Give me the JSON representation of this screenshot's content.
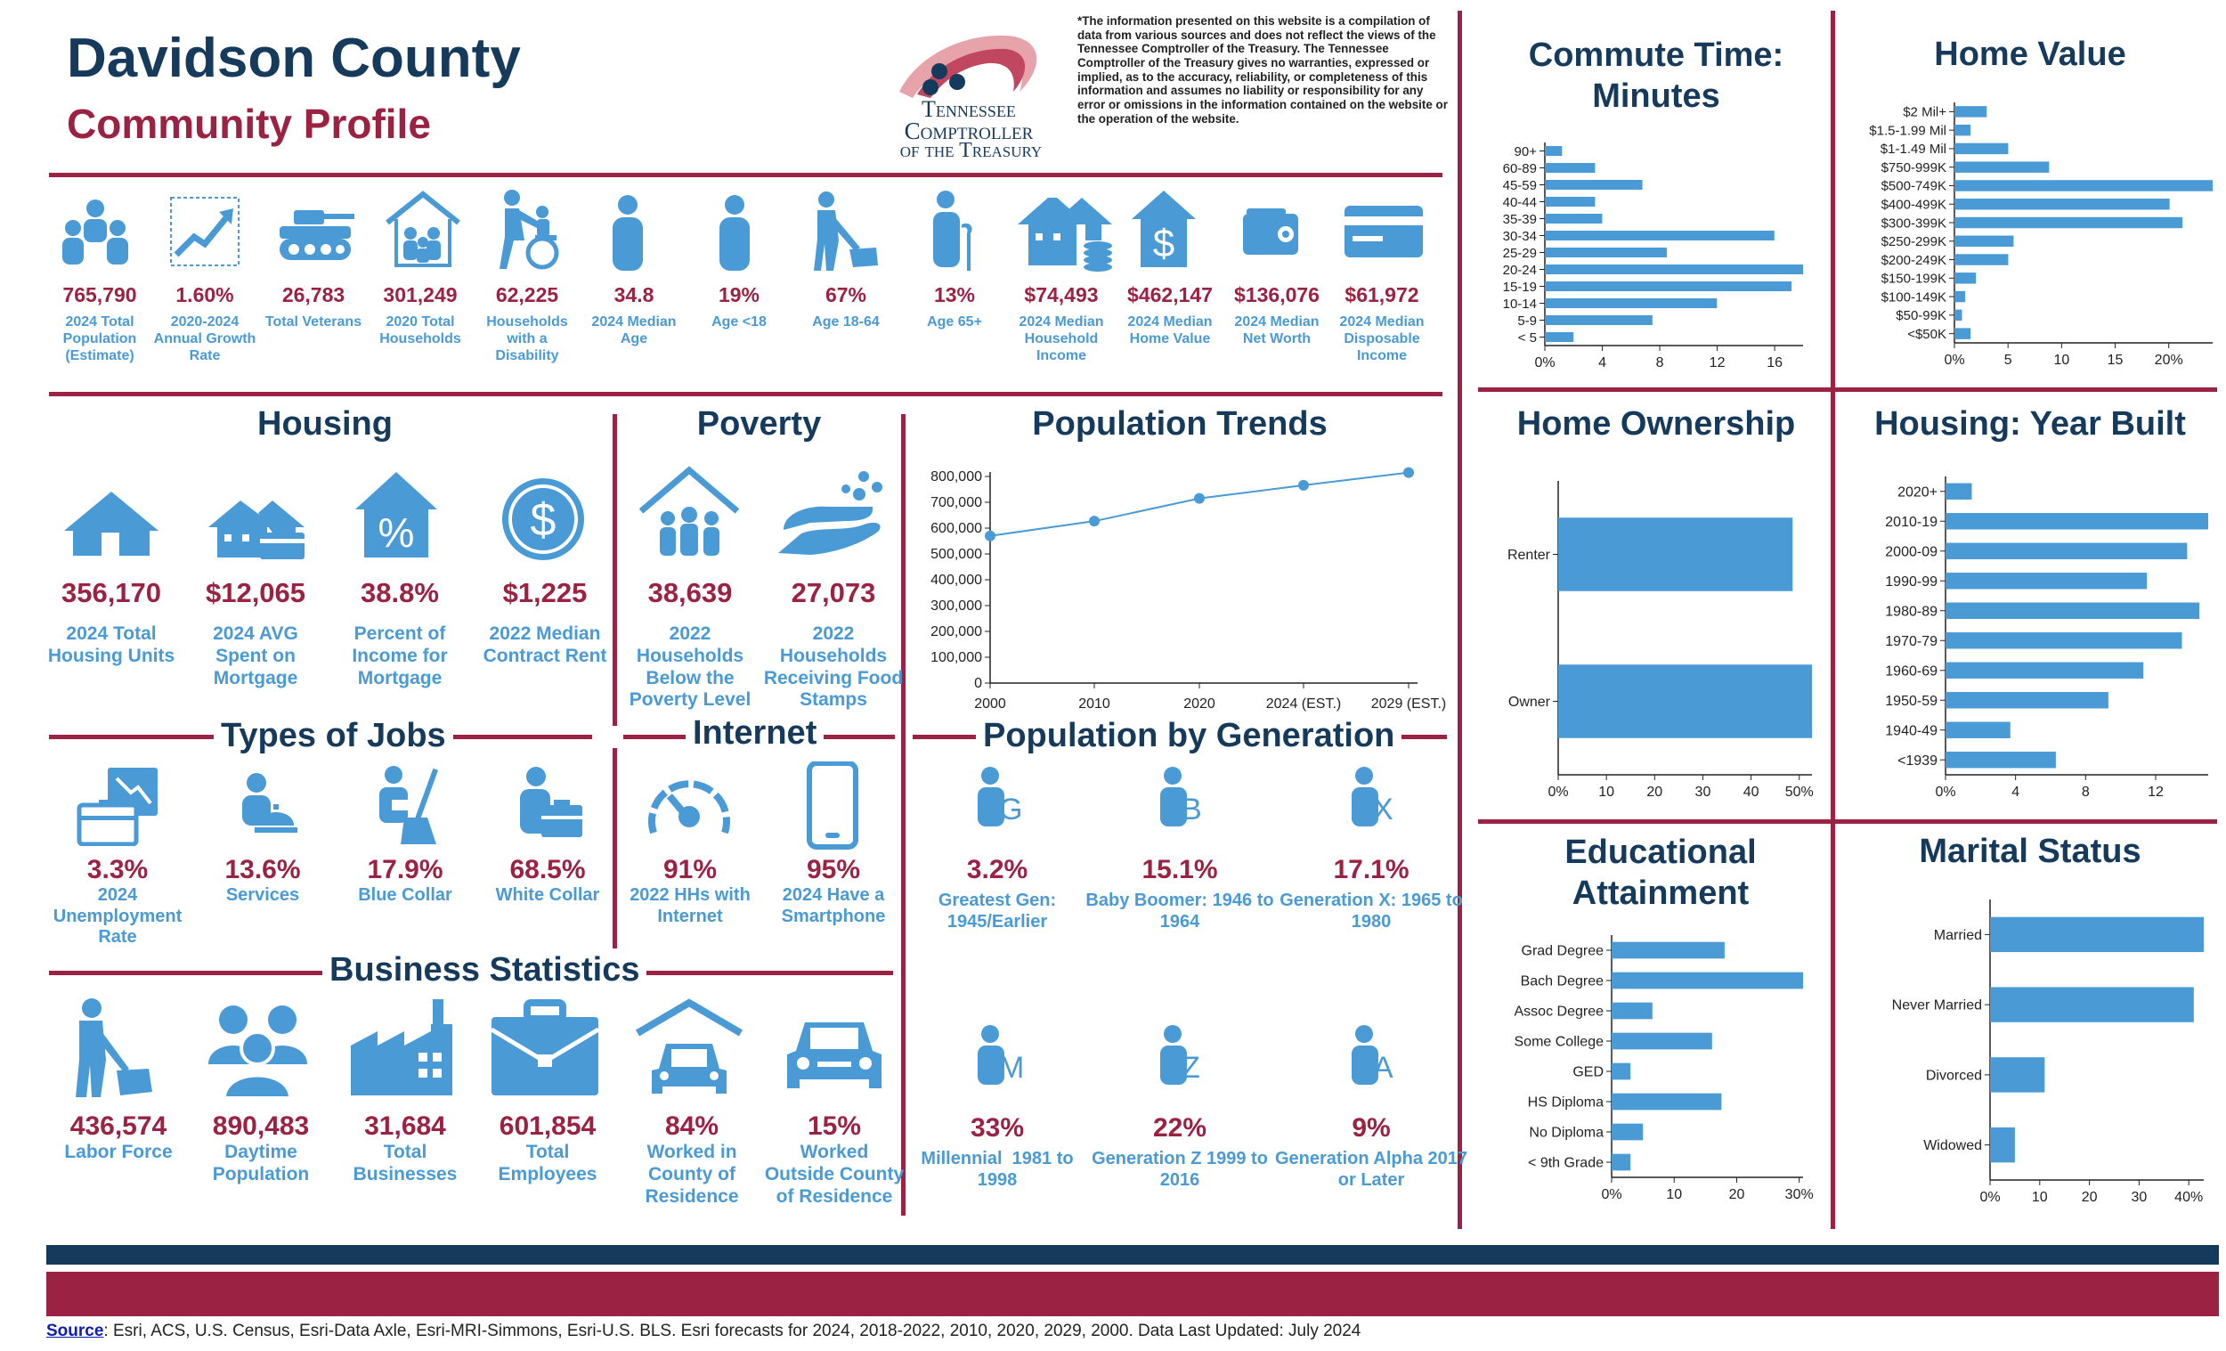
{
  "header": {
    "title": "Davidson County",
    "subtitle": "Community Profile",
    "logo_text": [
      "Tennessee",
      "Comptroller",
      "of the Treasury"
    ],
    "disclaimer": "*The information presented on this website is a compilation of data from various sources and does not reflect the views of the Tennessee Comptroller of the Treasury. The Tennessee Comptroller of the Treasury gives no warranties, expressed or implied, as to the accuracy, reliability, or completeness of this information and assumes no liability or responsibility for any error or omissions in the information contained on the website or the operation of the website."
  },
  "top_stats": [
    {
      "value": "765,790",
      "label": "2024 Total Population (Estimate)",
      "icon": "people-group-icon"
    },
    {
      "value": "1.60%",
      "label": "2020-2024 Annual Growth Rate",
      "icon": "growth-chart-icon"
    },
    {
      "value": "26,783",
      "label": "Total Veterans",
      "icon": "tank-icon"
    },
    {
      "value": "301,249",
      "label": "2020 Total Households",
      "icon": "household-icon"
    },
    {
      "value": "62,225",
      "label": "Households with a Disability",
      "icon": "wheelchair-icon"
    },
    {
      "value": "34.8",
      "label": "2024 Median Age",
      "icon": "person-icon"
    },
    {
      "value": "19%",
      "label": "Age <18",
      "icon": "child-icon"
    },
    {
      "value": "67%",
      "label": "Age 18-64",
      "icon": "worker-icon"
    },
    {
      "value": "13%",
      "label": "Age 65+",
      "icon": "elder-icon"
    },
    {
      "value": "$74,493",
      "label": "2024 Median Household Income",
      "icon": "house-coins-icon"
    },
    {
      "value": "$462,147",
      "label": "2024 Median Home Value",
      "icon": "house-dollar-icon"
    },
    {
      "value": "$136,076",
      "label": "2024 Median Net Worth",
      "icon": "wallet-icon"
    },
    {
      "value": "$61,972",
      "label": "2024 Median Disposable Income",
      "icon": "credit-card-icon"
    }
  ],
  "housing": {
    "title": "Housing",
    "stats": [
      {
        "value": "356,170",
        "label": "2024 Total Housing Units",
        "icon": "house-icon"
      },
      {
        "value": "$12,065",
        "label": "2024 AVG Spent on Mortgage",
        "icon": "house-card-icon"
      },
      {
        "value": "38.8%",
        "label": "Percent of Income for Mortgage",
        "icon": "house-percent-icon"
      },
      {
        "value": "$1,225",
        "label": "2022 Median Contract Rent",
        "icon": "dollar-circle-icon"
      }
    ]
  },
  "poverty": {
    "title": "Poverty",
    "stats": [
      {
        "value": "38,639",
        "label": "2022 Households Below the Poverty Level",
        "icon": "family-house-icon"
      },
      {
        "value": "27,073",
        "label": "2022 Households Receiving Food Stamps",
        "icon": "hand-food-icon"
      }
    ]
  },
  "jobs": {
    "title": "Types of Jobs",
    "stats": [
      {
        "value": "3.3%",
        "label": "2024 Unemployment Rate",
        "icon": "briefcase-down-icon"
      },
      {
        "value": "13.6%",
        "label": "Services",
        "icon": "service-bell-icon"
      },
      {
        "value": "17.9%",
        "label": "Blue Collar",
        "icon": "broom-worker-icon"
      },
      {
        "value": "68.5%",
        "label": "White Collar",
        "icon": "office-worker-icon"
      }
    ]
  },
  "internet": {
    "title": "Internet",
    "stats": [
      {
        "value": "91%",
        "label": "2022 HHs with Internet",
        "icon": "speedometer-icon"
      },
      {
        "value": "95%",
        "label": "2024 Have a Smartphone",
        "icon": "smartphone-icon"
      }
    ]
  },
  "business": {
    "title": "Business Statistics",
    "stats": [
      {
        "value": "436,574",
        "label": "Labor Force",
        "icon": "laborer-icon"
      },
      {
        "value": "890,483",
        "label": "Daytime Population",
        "icon": "crowd-icon"
      },
      {
        "value": "31,684",
        "label": "Total Businesses",
        "icon": "factory-icon"
      },
      {
        "value": "601,854",
        "label": "Total Employees",
        "icon": "big-briefcase-icon"
      },
      {
        "value": "84%",
        "label": "Worked in County of Residence",
        "icon": "car-garage-icon"
      },
      {
        "value": "15%",
        "label": "Worked Outside County of Residence",
        "icon": "car-icon"
      }
    ]
  },
  "generation": {
    "title": "Population by Generation",
    "stats": [
      {
        "value": "3.2%",
        "label": "Greatest Gen: 1945/Earlier",
        "letter": "G"
      },
      {
        "value": "15.1%",
        "label": "Baby Boomer: 1946 to 1964",
        "letter": "B"
      },
      {
        "value": "17.1%",
        "label": "Generation X: 1965 to 1980",
        "letter": "X"
      },
      {
        "value": "33%",
        "label": "Millennial  1981 to 1998",
        "letter": "M"
      },
      {
        "value": "22%",
        "label": "Generation Z 1999 to 2016",
        "letter": "Z"
      },
      {
        "value": "9%",
        "label": "Generation Alpha 2017 or Later",
        "letter": "A"
      }
    ]
  },
  "source": {
    "label": "Source",
    "text": ": Esri, ACS, U.S. Census, Esri-Data Axle, Esri-MRI-Simmons, Esri-U.S. BLS. Esri forecasts for 2024, 2018-2022, 2010, 2020, 2029, 2000. Data Last Updated: July 2024"
  },
  "colors": {
    "navy": "#153a5b",
    "red": "#9b2242",
    "blue": "#4a9ad6"
  },
  "chart_data": [
    {
      "id": "population_trends",
      "type": "line",
      "title": "Population Trends",
      "categories": [
        "2000",
        "2010",
        "2020",
        "2024 (EST.)",
        "2029 (EST.)"
      ],
      "values": [
        570000,
        627000,
        715000,
        766000,
        815000
      ],
      "yticks": [
        "0",
        "100,000",
        "200,000",
        "300,000",
        "400,000",
        "500,000",
        "600,000",
        "700,000",
        "800,000"
      ],
      "ylim": [
        0,
        800000
      ]
    },
    {
      "id": "commute",
      "type": "bar",
      "orientation": "horizontal",
      "title": "Commute Time: Minutes",
      "categories": [
        "90+",
        "60-89",
        "45-59",
        "40-44",
        "35-39",
        "30-34",
        "25-29",
        "20-24",
        "15-19",
        "10-14",
        "5-9",
        "< 5"
      ],
      "values": [
        1.2,
        3.5,
        6.8,
        3.5,
        4.0,
        16.0,
        8.5,
        18.0,
        17.2,
        12.0,
        7.5,
        2.0
      ],
      "xticks": [
        "0%",
        "4",
        "8",
        "12",
        "16"
      ],
      "xlim": [
        0,
        18
      ]
    },
    {
      "id": "home_value",
      "type": "bar",
      "orientation": "horizontal",
      "title": "Home Value",
      "categories": [
        "$2 Mil+",
        "$1.5-1.99 Mil",
        "$1-1.49 Mil",
        "$750-999K",
        "$500-749K",
        "$400-499K",
        "$300-399K",
        "$250-299K",
        "$200-249K",
        "$150-199K",
        "$100-149K",
        "$50-99K",
        "<$50K"
      ],
      "values": [
        3.0,
        1.5,
        5.0,
        8.8,
        24.0,
        20.0,
        21.2,
        5.5,
        5.0,
        2.0,
        1.0,
        0.7,
        1.5
      ],
      "xticks": [
        "0%",
        "5",
        "10",
        "15",
        "20%"
      ],
      "xlim": [
        0,
        24
      ]
    },
    {
      "id": "home_ownership",
      "type": "bar",
      "orientation": "horizontal",
      "title": "Home Ownership",
      "categories": [
        "Renter",
        "Owner"
      ],
      "values": [
        48.5,
        52.5
      ],
      "xticks": [
        "0%",
        "10",
        "20",
        "30",
        "40",
        "50%"
      ],
      "xlim": [
        0,
        52.5
      ]
    },
    {
      "id": "year_built",
      "type": "bar",
      "orientation": "horizontal",
      "title": "Housing: Year Built",
      "categories": [
        "2020+",
        "2010-19",
        "2000-09",
        "1990-99",
        "1980-89",
        "1970-79",
        "1960-69",
        "1950-59",
        "1940-49",
        "<1939"
      ],
      "values": [
        1.5,
        15.0,
        13.8,
        11.5,
        14.5,
        13.5,
        11.3,
        9.3,
        3.7,
        6.3
      ],
      "xticks": [
        "0%",
        "4",
        "8",
        "12"
      ],
      "xlim": [
        0,
        15
      ]
    },
    {
      "id": "education",
      "type": "bar",
      "orientation": "horizontal",
      "title": "Educational Attainment",
      "categories": [
        "Grad Degree",
        "Bach Degree",
        "Assoc Degree",
        "Some College",
        "GED",
        "HS Diploma",
        "No Diploma",
        "< 9th Grade"
      ],
      "values": [
        18.0,
        30.5,
        6.5,
        16.0,
        3.0,
        17.5,
        5.0,
        3.0
      ],
      "xticks": [
        "0%",
        "10",
        "20",
        "30%"
      ],
      "xlim": [
        0,
        30.5
      ]
    },
    {
      "id": "marital",
      "type": "bar",
      "orientation": "horizontal",
      "title": "Marital Status",
      "categories": [
        "Married",
        "Never Married",
        "Divorced",
        "Widowed"
      ],
      "values": [
        43.0,
        41.0,
        11.0,
        5.0
      ],
      "xticks": [
        "0%",
        "10",
        "20",
        "30",
        "40%"
      ],
      "xlim": [
        0,
        43
      ]
    }
  ]
}
